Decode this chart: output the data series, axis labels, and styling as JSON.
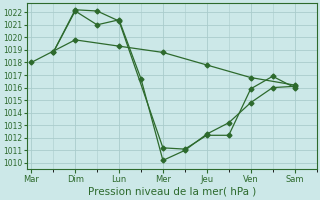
{
  "x_labels": [
    "Mar",
    "Dim",
    "Lun",
    "Mer",
    "Jeu",
    "Ven",
    "Sam"
  ],
  "x_tick_positions": [
    0,
    1,
    2,
    3,
    4,
    5,
    6
  ],
  "line1": {
    "x": [
      0,
      1,
      2,
      3,
      4,
      5,
      6
    ],
    "y": [
      1018.0,
      1019.8,
      1019.3,
      1018.8,
      1017.8,
      1016.8,
      1016.2
    ],
    "color": "#2d6a2d",
    "marker": "D",
    "markersize": 2.5,
    "linewidth": 0.9
  },
  "line2": {
    "x": [
      0.5,
      1.0,
      1.5,
      2.0,
      3.0,
      3.5,
      4.0,
      4.5,
      5.0,
      5.5,
      6.0
    ],
    "y": [
      1018.8,
      1022.2,
      1022.1,
      1021.3,
      1011.2,
      1011.1,
      1012.2,
      1012.2,
      1015.9,
      1016.9,
      1016.0
    ],
    "color": "#2d6a2d",
    "marker": "D",
    "markersize": 2.5,
    "linewidth": 0.9
  },
  "line3": {
    "x": [
      0.5,
      1.0,
      1.5,
      2.0,
      2.5,
      3.0,
      3.5,
      4.0,
      4.5,
      5.0,
      5.5,
      6.0
    ],
    "y": [
      1018.8,
      1022.1,
      1021.0,
      1021.4,
      1016.7,
      1010.2,
      1011.0,
      1012.3,
      1013.2,
      1014.8,
      1016.0,
      1016.1
    ],
    "color": "#2d6a2d",
    "marker": "D",
    "markersize": 2.5,
    "linewidth": 0.9
  },
  "ylim": [
    1009.5,
    1022.7
  ],
  "yticks": [
    1010,
    1011,
    1012,
    1013,
    1014,
    1015,
    1016,
    1017,
    1018,
    1019,
    1020,
    1021,
    1022
  ],
  "xlim": [
    -0.1,
    6.5
  ],
  "xlabel": "Pression niveau de la mer( hPa )",
  "bg_color": "#cce8e8",
  "grid_color": "#aacccc",
  "axis_color": "#2d6a2d",
  "tick_label_color": "#2d6a2d",
  "xlabel_color": "#2d6a2d",
  "xlabel_fontsize": 7.5,
  "ytick_fontsize": 5.5,
  "xtick_fontsize": 6.0
}
